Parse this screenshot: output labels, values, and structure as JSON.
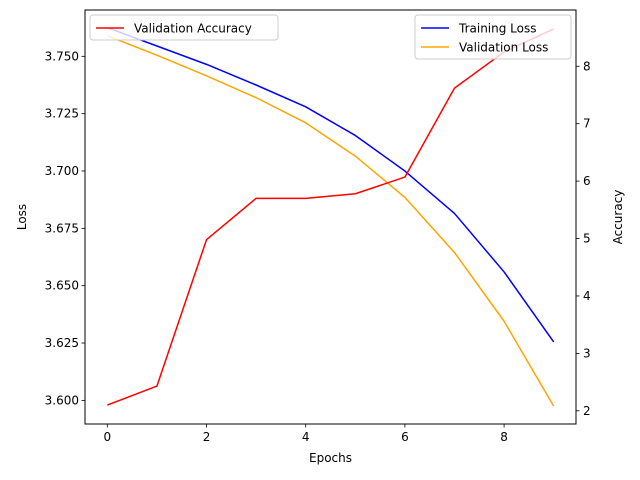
{
  "chart_data": {
    "type": "line",
    "title": "",
    "xlabel": "Epochs",
    "ylabel_left": "Loss",
    "ylabel_right": "Accuracy",
    "x": [
      0,
      1,
      2,
      3,
      4,
      5,
      6,
      7,
      8,
      9
    ],
    "xlim": [
      -0.45,
      9.45
    ],
    "xticks": [
      0,
      2,
      4,
      6,
      8
    ],
    "ylim_left": [
      3.5897,
      3.7702
    ],
    "yticks_left": [
      3.6,
      3.625,
      3.65,
      3.675,
      3.7,
      3.725,
      3.75
    ],
    "ylim_right": [
      1.77,
      8.98
    ],
    "yticks_right": [
      2,
      3,
      4,
      5,
      6,
      7,
      8
    ],
    "grid": false,
    "series": [
      {
        "name": "Training Loss",
        "axis": "left",
        "color": "#0000ff",
        "values": [
          3.7625,
          3.7545,
          3.7465,
          3.7375,
          3.728,
          3.7155,
          3.7,
          3.6815,
          3.656,
          3.6255
        ]
      },
      {
        "name": "Validation Loss",
        "axis": "left",
        "color": "#ffa500",
        "values": [
          3.759,
          3.7505,
          3.7415,
          3.732,
          3.721,
          3.7065,
          3.6885,
          3.6645,
          3.6345,
          3.5975
        ]
      },
      {
        "name": "Validation Accuracy",
        "axis": "right",
        "color": "#ff0000",
        "values": [
          2.1,
          2.43,
          4.98,
          5.7,
          5.7,
          5.78,
          6.07,
          7.62,
          8.25,
          8.65
        ]
      }
    ],
    "legends": [
      {
        "placement": "upper-left",
        "entries": [
          "Validation Accuracy"
        ]
      },
      {
        "placement": "upper-right",
        "entries": [
          "Training Loss",
          "Validation Loss"
        ]
      }
    ]
  }
}
